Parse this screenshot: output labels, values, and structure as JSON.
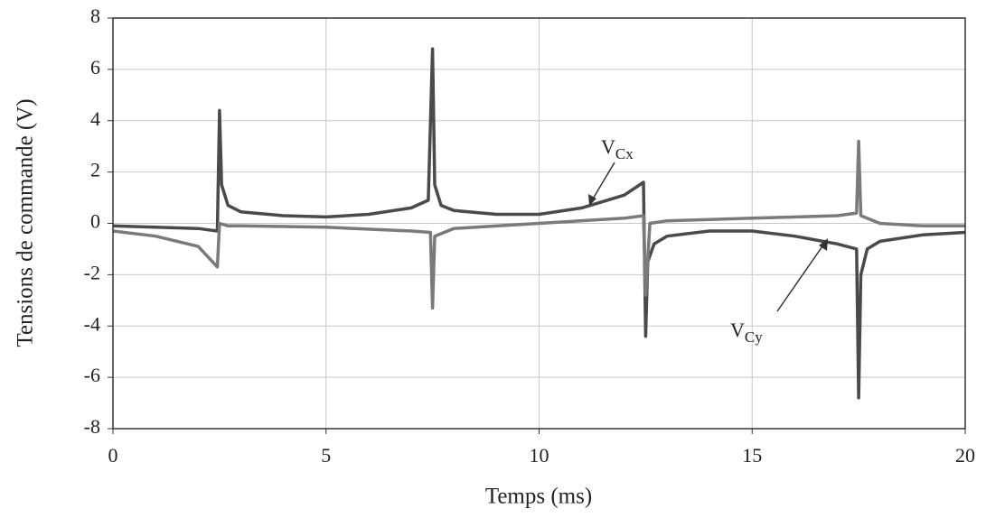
{
  "chart_data": {
    "type": "line",
    "xlabel": "Temps (ms)",
    "ylabel": "Tensions de commande (V)",
    "xlim": [
      0,
      20
    ],
    "xticks": [
      0,
      5,
      10,
      15,
      20
    ],
    "ylim": [
      -8,
      8
    ],
    "yticks": [
      -8,
      -6,
      -4,
      -2,
      0,
      2,
      4,
      6,
      8
    ],
    "grid": true,
    "series": [
      {
        "color": "#4a4a4a",
        "x": [
          0,
          1,
          2,
          2.45,
          2.5,
          2.55,
          2.7,
          3,
          4,
          5,
          6,
          7,
          7.4,
          7.5,
          7.55,
          7.7,
          8,
          9,
          10,
          11,
          12,
          12.45,
          12.5,
          12.55,
          12.7,
          13,
          14,
          15,
          16,
          17,
          17.45,
          17.5,
          17.55,
          17.7,
          18,
          19,
          20
        ],
        "values": [
          -0.1,
          -0.15,
          -0.2,
          -0.3,
          4.4,
          1.5,
          0.7,
          0.45,
          0.3,
          0.25,
          0.35,
          0.6,
          0.9,
          6.8,
          1.5,
          0.7,
          0.5,
          0.35,
          0.35,
          0.6,
          1.1,
          1.6,
          -4.4,
          -1.5,
          -0.8,
          -0.5,
          -0.3,
          -0.3,
          -0.5,
          -0.8,
          -1.0,
          -6.8,
          -2.0,
          -1.0,
          -0.7,
          -0.45,
          -0.35
        ]
      },
      {
        "color": "#7a7a7a",
        "x": [
          0,
          1,
          2,
          2.45,
          2.5,
          2.7,
          3,
          5,
          7,
          7.45,
          7.5,
          7.55,
          8,
          10,
          12,
          12.45,
          12.5,
          12.6,
          13,
          15,
          17,
          17.45,
          17.5,
          17.55,
          18,
          19,
          20
        ],
        "values": [
          -0.3,
          -0.5,
          -0.9,
          -1.7,
          0,
          -0.1,
          -0.1,
          -0.15,
          -0.3,
          -0.35,
          -3.3,
          -0.5,
          -0.2,
          0,
          0.2,
          0.3,
          -2.8,
          0,
          0.1,
          0.2,
          0.3,
          0.4,
          3.2,
          0.3,
          0,
          -0.1,
          -0.1
        ]
      }
    ],
    "annotations": [
      {
        "base": "V",
        "sub": "Cx"
      },
      {
        "base": "V",
        "sub": "Cy"
      }
    ]
  }
}
